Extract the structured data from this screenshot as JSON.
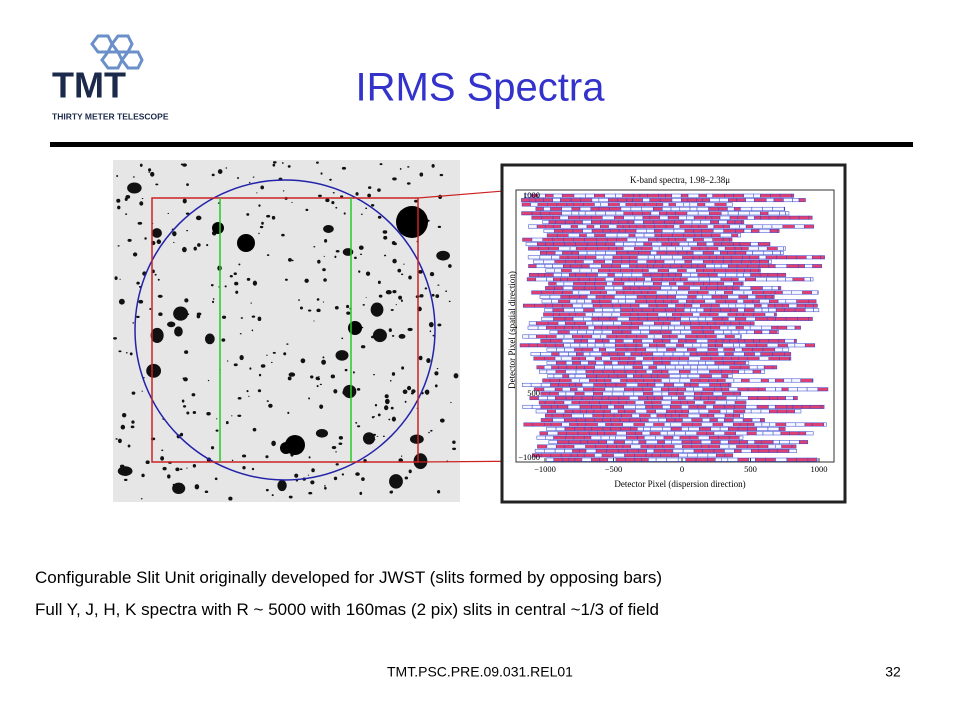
{
  "logo": {
    "mark": "TMT",
    "subtitle": "THIRTY METER TELESCOPE"
  },
  "header": {
    "title": "IRMS Spectra"
  },
  "figure": {
    "plot_title": "K-band spectra, 1.98–2.38μ",
    "y_label": "Detector Pixel (spatial direction)",
    "x_label": "Detector Pixel (dispersion direction)",
    "xticks": [
      "−1000",
      "−500",
      "0",
      "500",
      "1000"
    ],
    "yticks": [
      "1000",
      "500",
      "−1000"
    ]
  },
  "bullets": [
    "Configurable Slit Unit originally developed for JWST (slits formed by opposing bars)",
    "Full Y, J, H, K spectra with R ~ 5000 with 160mas (2 pix) slits in central ~1/3 of field"
  ],
  "footer": {
    "doc_id": "TMT.PSC.PRE.09.031.REL01",
    "page": "32"
  }
}
